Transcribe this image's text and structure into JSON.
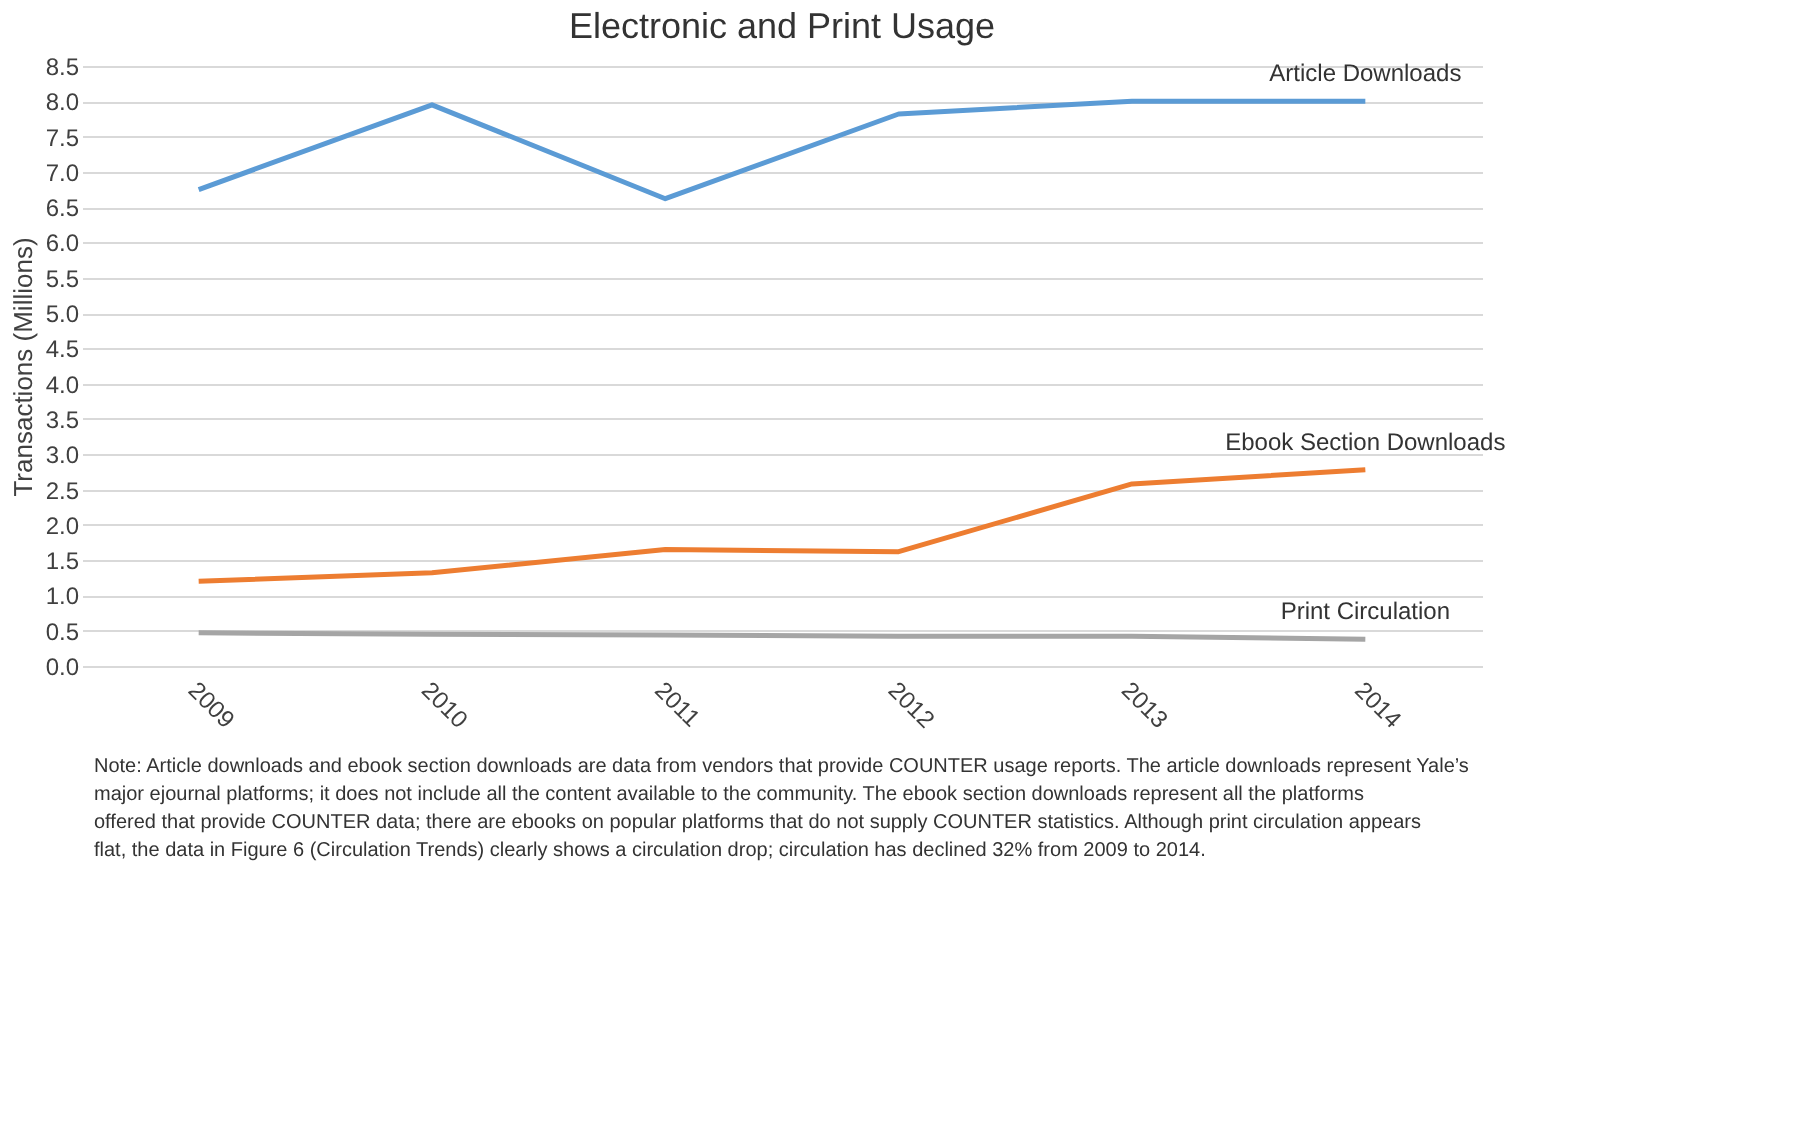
{
  "chart_data": {
    "type": "line",
    "title": "Electronic and Print Usage",
    "ylabel": "Transactions (Millions)",
    "categories": [
      "2009",
      "2010",
      "2011",
      "2012",
      "2013",
      "2014"
    ],
    "series": [
      {
        "name": "Article Downloads",
        "color": "#5b9bd5",
        "values": [
          6.75,
          7.95,
          6.62,
          7.82,
          8.0,
          8.0
        ]
      },
      {
        "name": "Ebook Section Downloads",
        "color": "#ed7d31",
        "values": [
          1.2,
          1.32,
          1.65,
          1.62,
          2.58,
          2.78
        ]
      },
      {
        "name": "Print Circulation",
        "color": "#a5a5a5",
        "values": [
          0.47,
          0.45,
          0.44,
          0.42,
          0.42,
          0.38
        ]
      }
    ],
    "ylim": [
      0,
      8.5
    ],
    "yticks": [
      {
        "value": 0,
        "label": "0.0"
      },
      0.5,
      {
        "value": 1,
        "label": "1.0"
      },
      1.5,
      {
        "value": 2,
        "label": "2.0"
      },
      2.5,
      {
        "value": 3,
        "label": "3.0"
      },
      3.5,
      {
        "value": 4,
        "label": "4.0"
      },
      4.5,
      {
        "value": 5,
        "label": "5.0"
      },
      5.5,
      {
        "value": 6,
        "label": "6.0"
      },
      6.5,
      {
        "value": 7,
        "label": "7.0"
      },
      7.5,
      {
        "value": 8,
        "label": "8.0"
      },
      8.5
    ],
    "grid": "y",
    "legend": false,
    "marker": "none",
    "line_style": "solid",
    "annotations": [
      "Note: Article downloads and ebook section downloads are data from vendors that provide COUNTER usage reports. The article downloads represent Yale’s major ejournal platforms; it does not include all the content available to the community. The ebook section downloads represent all the platforms offered that provide COUNTER data; there are ebooks on popular platforms that do not supply COUNTER statistics. Although print circulation appears flat, the data in Figure 6 (Circulation Trends) clearly shows a circulation drop; circulation has declined 32% from 2009 to 2014."
    ]
  }
}
